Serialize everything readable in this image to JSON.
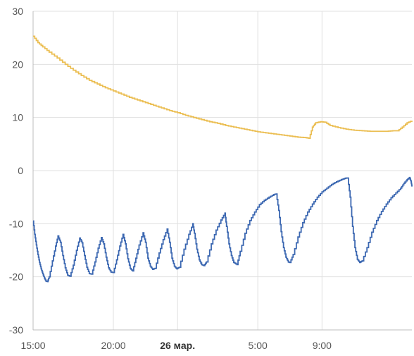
{
  "chart_data": {
    "type": "line",
    "title": "",
    "xlabel": "",
    "ylabel": "",
    "ylim": [
      -30,
      30
    ],
    "xlim_hours": [
      15,
      38.6
    ],
    "grid": true,
    "yticks": [
      {
        "label": "30",
        "value": 30
      },
      {
        "label": "20",
        "value": 20
      },
      {
        "label": "10",
        "value": 10
      },
      {
        "label": "0",
        "value": 0
      },
      {
        "label": "-10",
        "value": -10
      },
      {
        "label": "-20",
        "value": -20
      },
      {
        "label": "-30",
        "value": -30
      }
    ],
    "xticks": [
      {
        "label": "15:00",
        "value": 15,
        "bold": false
      },
      {
        "label": "20:00",
        "value": 20,
        "bold": false
      },
      {
        "label": "26 мар.",
        "value": 24,
        "bold": true
      },
      {
        "label": "5:00",
        "value": 29,
        "bold": false
      },
      {
        "label": "9:00",
        "value": 33,
        "bold": false
      }
    ],
    "series": [
      {
        "color": "#ebbe52",
        "points": [
          [
            15.0,
            25.3
          ],
          [
            15.3,
            24.1
          ],
          [
            15.6,
            23.3
          ],
          [
            16.0,
            22.3
          ],
          [
            16.5,
            21.2
          ],
          [
            17.0,
            20.0
          ],
          [
            17.5,
            18.9
          ],
          [
            18.0,
            17.9
          ],
          [
            18.5,
            17.0
          ],
          [
            19.0,
            16.3
          ],
          [
            19.5,
            15.6
          ],
          [
            20.0,
            15.0
          ],
          [
            20.5,
            14.4
          ],
          [
            21.0,
            13.8
          ],
          [
            21.5,
            13.3
          ],
          [
            22.0,
            12.8
          ],
          [
            22.5,
            12.3
          ],
          [
            23.0,
            11.8
          ],
          [
            23.5,
            11.3
          ],
          [
            24.0,
            10.9
          ],
          [
            24.5,
            10.4
          ],
          [
            25.0,
            10.0
          ],
          [
            25.5,
            9.6
          ],
          [
            26.0,
            9.2
          ],
          [
            26.5,
            8.9
          ],
          [
            27.0,
            8.5
          ],
          [
            27.5,
            8.2
          ],
          [
            28.0,
            7.9
          ],
          [
            28.5,
            7.6
          ],
          [
            29.0,
            7.3
          ],
          [
            29.5,
            7.1
          ],
          [
            30.0,
            6.9
          ],
          [
            30.5,
            6.7
          ],
          [
            31.0,
            6.5
          ],
          [
            31.5,
            6.3
          ],
          [
            32.0,
            6.2
          ],
          [
            32.2,
            6.1
          ],
          [
            32.4,
            8.2
          ],
          [
            32.6,
            9.0
          ],
          [
            32.9,
            9.2
          ],
          [
            33.2,
            9.1
          ],
          [
            33.5,
            8.5
          ],
          [
            34.0,
            8.1
          ],
          [
            34.5,
            7.8
          ],
          [
            35.0,
            7.6
          ],
          [
            35.5,
            7.5
          ],
          [
            36.0,
            7.4
          ],
          [
            36.5,
            7.4
          ],
          [
            37.0,
            7.4
          ],
          [
            37.4,
            7.5
          ],
          [
            37.7,
            7.5
          ],
          [
            38.0,
            8.2
          ],
          [
            38.3,
            9.0
          ],
          [
            38.6,
            9.4
          ]
        ]
      },
      {
        "color": "#3b67b1",
        "points": [
          [
            15.0,
            -9.5
          ],
          [
            15.1,
            -12.0
          ],
          [
            15.2,
            -14.0
          ],
          [
            15.3,
            -15.8
          ],
          [
            15.4,
            -17.3
          ],
          [
            15.5,
            -18.5
          ],
          [
            15.6,
            -19.4
          ],
          [
            15.7,
            -20.2
          ],
          [
            15.8,
            -20.8
          ],
          [
            15.9,
            -20.9
          ],
          [
            16.0,
            -20.0
          ],
          [
            16.2,
            -17.0
          ],
          [
            16.4,
            -14.2
          ],
          [
            16.55,
            -12.3
          ],
          [
            16.7,
            -13.5
          ],
          [
            16.85,
            -16.0
          ],
          [
            17.0,
            -18.3
          ],
          [
            17.15,
            -19.7
          ],
          [
            17.3,
            -19.9
          ],
          [
            17.5,
            -17.8
          ],
          [
            17.7,
            -15.0
          ],
          [
            17.9,
            -12.7
          ],
          [
            18.05,
            -13.6
          ],
          [
            18.2,
            -16.0
          ],
          [
            18.35,
            -18.2
          ],
          [
            18.5,
            -19.4
          ],
          [
            18.65,
            -19.5
          ],
          [
            18.85,
            -17.2
          ],
          [
            19.05,
            -14.6
          ],
          [
            19.25,
            -12.6
          ],
          [
            19.4,
            -13.8
          ],
          [
            19.55,
            -16.3
          ],
          [
            19.7,
            -18.3
          ],
          [
            19.85,
            -19.1
          ],
          [
            20.0,
            -19.2
          ],
          [
            20.2,
            -16.8
          ],
          [
            20.4,
            -14.2
          ],
          [
            20.6,
            -12.0
          ],
          [
            20.75,
            -13.8
          ],
          [
            20.9,
            -16.6
          ],
          [
            21.05,
            -18.4
          ],
          [
            21.2,
            -18.9
          ],
          [
            21.4,
            -16.5
          ],
          [
            21.6,
            -14.0
          ],
          [
            21.85,
            -11.7
          ],
          [
            22.0,
            -13.5
          ],
          [
            22.15,
            -16.5
          ],
          [
            22.3,
            -18.0
          ],
          [
            22.45,
            -18.6
          ],
          [
            22.6,
            -18.4
          ],
          [
            22.85,
            -15.5
          ],
          [
            23.1,
            -13.0
          ],
          [
            23.35,
            -11.0
          ],
          [
            23.5,
            -13.5
          ],
          [
            23.65,
            -16.5
          ],
          [
            23.8,
            -18.0
          ],
          [
            23.95,
            -18.5
          ],
          [
            24.1,
            -18.2
          ],
          [
            24.4,
            -14.8
          ],
          [
            24.7,
            -12.0
          ],
          [
            24.95,
            -10.0
          ],
          [
            25.05,
            -11.8
          ],
          [
            25.2,
            -14.8
          ],
          [
            25.35,
            -16.8
          ],
          [
            25.5,
            -17.7
          ],
          [
            25.65,
            -17.9
          ],
          [
            25.8,
            -17.2
          ],
          [
            26.1,
            -13.8
          ],
          [
            26.4,
            -11.2
          ],
          [
            26.7,
            -9.3
          ],
          [
            26.95,
            -8.0
          ],
          [
            27.05,
            -10.5
          ],
          [
            27.2,
            -13.8
          ],
          [
            27.35,
            -16.0
          ],
          [
            27.5,
            -17.3
          ],
          [
            27.7,
            -17.7
          ],
          [
            27.9,
            -15.2
          ],
          [
            28.2,
            -11.8
          ],
          [
            28.5,
            -9.4
          ],
          [
            28.8,
            -7.8
          ],
          [
            29.1,
            -6.4
          ],
          [
            29.4,
            -5.6
          ],
          [
            29.7,
            -5.0
          ],
          [
            30.0,
            -4.5
          ],
          [
            30.15,
            -4.4
          ],
          [
            30.3,
            -7.5
          ],
          [
            30.45,
            -11.5
          ],
          [
            30.6,
            -14.5
          ],
          [
            30.75,
            -16.3
          ],
          [
            30.9,
            -17.2
          ],
          [
            31.0,
            -17.3
          ],
          [
            31.2,
            -15.8
          ],
          [
            31.5,
            -12.5
          ],
          [
            31.8,
            -9.8
          ],
          [
            32.1,
            -7.8
          ],
          [
            32.4,
            -6.3
          ],
          [
            32.7,
            -5.0
          ],
          [
            33.0,
            -4.0
          ],
          [
            33.3,
            -3.3
          ],
          [
            33.6,
            -2.6
          ],
          [
            33.9,
            -2.1
          ],
          [
            34.2,
            -1.7
          ],
          [
            34.4,
            -1.5
          ],
          [
            34.5,
            -1.4
          ],
          [
            34.6,
            -1.4
          ],
          [
            34.75,
            -5.0
          ],
          [
            34.9,
            -10.5
          ],
          [
            35.05,
            -14.5
          ],
          [
            35.2,
            -16.7
          ],
          [
            35.35,
            -17.3
          ],
          [
            35.5,
            -17.0
          ],
          [
            35.8,
            -14.5
          ],
          [
            36.1,
            -11.6
          ],
          [
            36.4,
            -9.4
          ],
          [
            36.7,
            -7.7
          ],
          [
            37.0,
            -6.3
          ],
          [
            37.3,
            -5.1
          ],
          [
            37.6,
            -4.2
          ],
          [
            37.9,
            -3.3
          ],
          [
            38.1,
            -2.4
          ],
          [
            38.3,
            -1.7
          ],
          [
            38.45,
            -1.3
          ],
          [
            38.55,
            -2.1
          ],
          [
            38.6,
            -3.0
          ]
        ]
      }
    ]
  }
}
